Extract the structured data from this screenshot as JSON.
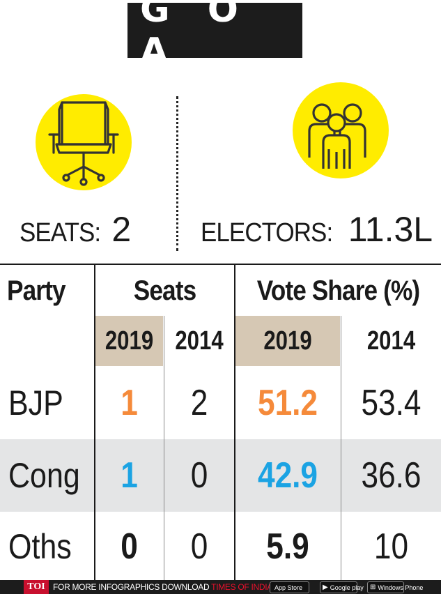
{
  "title": "G O A",
  "stats": {
    "seats_label": "SEATS:",
    "seats_value": "2",
    "electors_label": "ELECTORS:",
    "electors_value": "11.3L"
  },
  "icons": {
    "seats": "office-chair-icon",
    "electors": "people-group-icon",
    "icon_background": "#ffec00"
  },
  "table": {
    "headers": {
      "party": "Party",
      "seats": "Seats",
      "vote_share": "Vote Share (%)"
    },
    "years": {
      "seats_2019": "2019",
      "seats_2014": "2014",
      "vote_2019": "2019",
      "vote_2014": "2014"
    },
    "rows": [
      {
        "party": "BJP",
        "seats_2019": "1",
        "seats_2014": "2",
        "vote_2019": "51.2",
        "vote_2014": "53.4"
      },
      {
        "party": "Cong",
        "seats_2019": "1",
        "seats_2014": "0",
        "vote_2019": "42.9",
        "vote_2014": "36.6"
      },
      {
        "party": "Oths",
        "seats_2019": "0",
        "seats_2014": "0",
        "vote_2019": "5.9",
        "vote_2014": "10"
      }
    ]
  },
  "colors": {
    "bjp": "#f58a3a",
    "cong": "#1ba3e3",
    "year_header_bg": "#d6c8b4",
    "cong_row_bg": "#e4e5e6"
  },
  "footer": {
    "badge": "TOI",
    "text_prefix": "FOR MORE  INFOGRAPHICS DOWNLOAD ",
    "text_highlight": "TIMES OF INDIA APP",
    "app_store": "App Store",
    "google_play": "Google play",
    "windows_phone": "Windows Phone"
  }
}
